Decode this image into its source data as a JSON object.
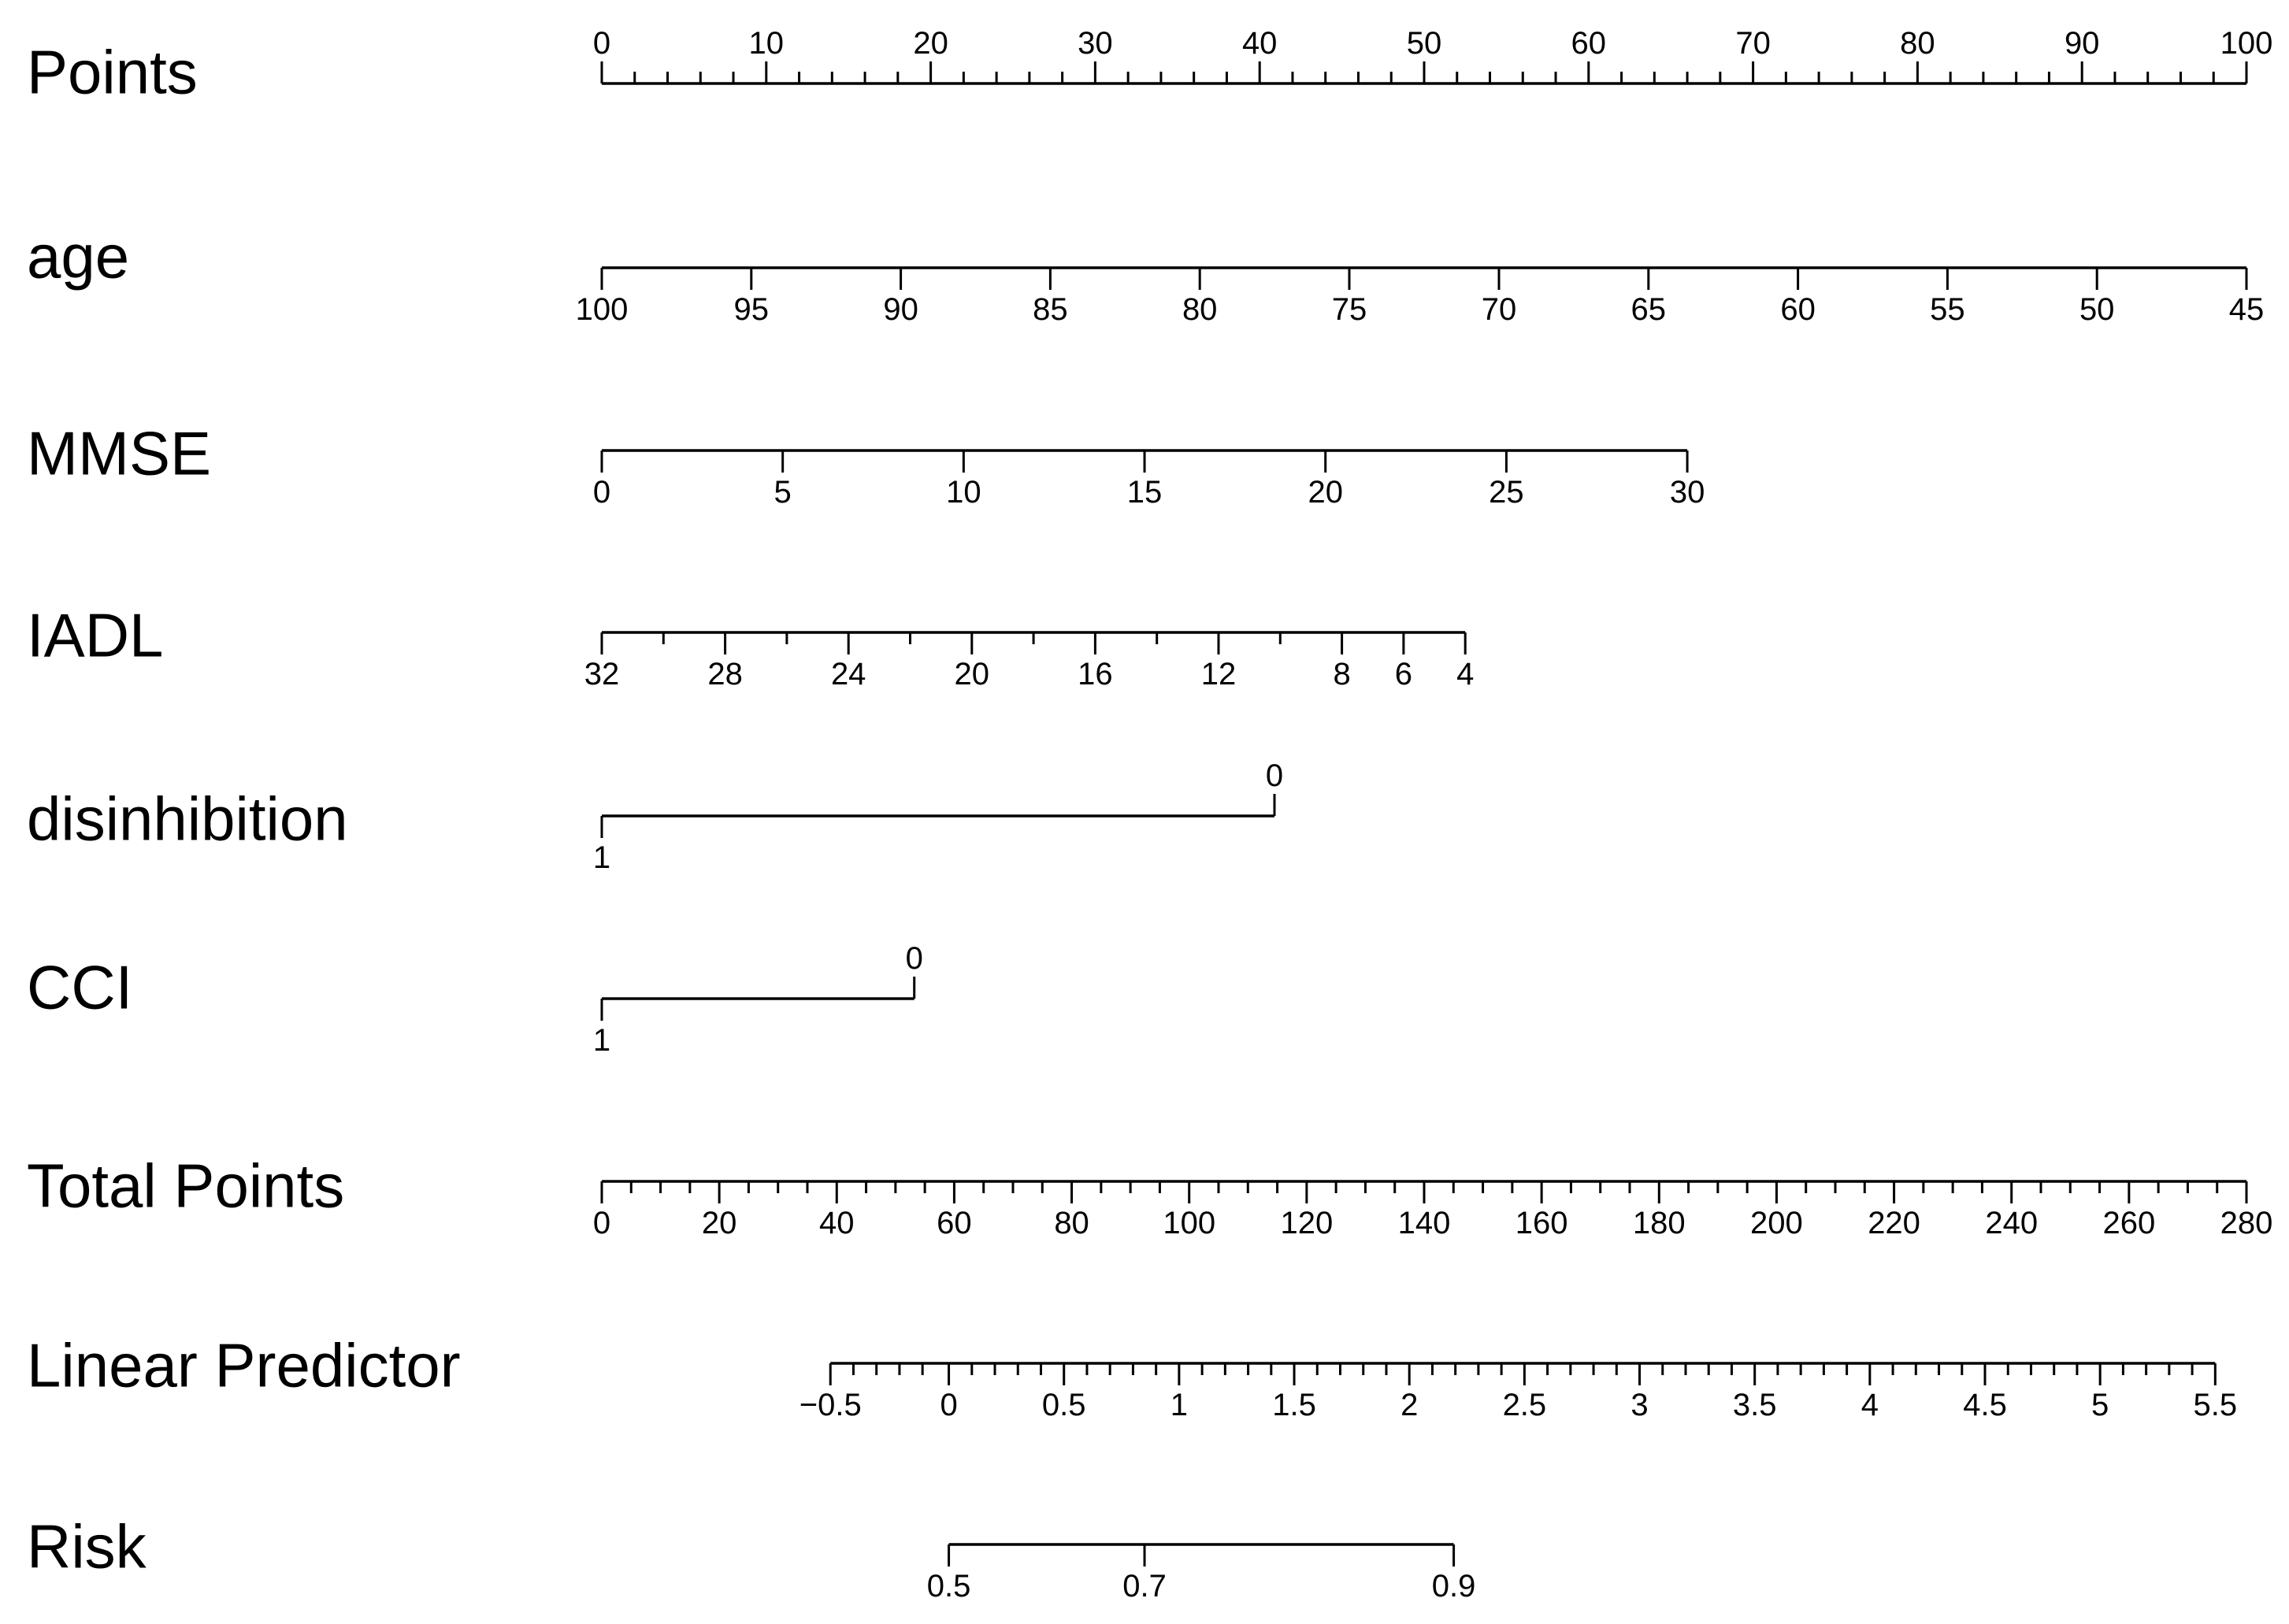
{
  "chart_data": {
    "type": "nomogram",
    "points_scale": [
      0,
      100
    ],
    "rows": [
      {
        "label": "Points",
        "labels_above": true,
        "minor_step": 2,
        "ticks": [
          {
            "value": 0,
            "label": "0"
          },
          {
            "value": 10,
            "label": "10"
          },
          {
            "value": 20,
            "label": "20"
          },
          {
            "value": 30,
            "label": "30"
          },
          {
            "value": 40,
            "label": "40"
          },
          {
            "value": 50,
            "label": "50"
          },
          {
            "value": 60,
            "label": "60"
          },
          {
            "value": 70,
            "label": "70"
          },
          {
            "value": 80,
            "label": "80"
          },
          {
            "value": 90,
            "label": "90"
          },
          {
            "value": 100,
            "label": "100"
          }
        ]
      },
      {
        "label": "age",
        "labels_above": false,
        "ticks": [
          {
            "value": 100,
            "points": 0,
            "label": "100"
          },
          {
            "value": 95,
            "points": 9.09,
            "label": "95"
          },
          {
            "value": 90,
            "points": 18.18,
            "label": "90"
          },
          {
            "value": 85,
            "points": 27.27,
            "label": "85"
          },
          {
            "value": 80,
            "points": 36.36,
            "label": "80"
          },
          {
            "value": 75,
            "points": 45.45,
            "label": "75"
          },
          {
            "value": 70,
            "points": 54.55,
            "label": "70"
          },
          {
            "value": 65,
            "points": 63.64,
            "label": "65"
          },
          {
            "value": 60,
            "points": 72.73,
            "label": "60"
          },
          {
            "value": 55,
            "points": 81.82,
            "label": "55"
          },
          {
            "value": 50,
            "points": 90.91,
            "label": "50"
          },
          {
            "value": 45,
            "points": 100,
            "label": "45"
          }
        ]
      },
      {
        "label": "MMSE",
        "labels_above": false,
        "ticks": [
          {
            "value": 0,
            "points": 0,
            "label": "0"
          },
          {
            "value": 5,
            "points": 11,
            "label": "5"
          },
          {
            "value": 10,
            "points": 22,
            "label": "10"
          },
          {
            "value": 15,
            "points": 33,
            "label": "15"
          },
          {
            "value": 20,
            "points": 44,
            "label": "20"
          },
          {
            "value": 25,
            "points": 55,
            "label": "25"
          },
          {
            "value": 30,
            "points": 66,
            "label": "30"
          }
        ]
      },
      {
        "label": "IADL",
        "labels_above": false,
        "ticks": [
          {
            "value": 32,
            "points": 0,
            "label": "32"
          },
          {
            "value": 30,
            "points": 3.75
          },
          {
            "value": 28,
            "points": 7.5,
            "label": "28"
          },
          {
            "value": 26,
            "points": 11.25
          },
          {
            "value": 24,
            "points": 15,
            "label": "24"
          },
          {
            "value": 22,
            "points": 18.75
          },
          {
            "value": 20,
            "points": 22.5,
            "label": "20"
          },
          {
            "value": 18,
            "points": 26.25
          },
          {
            "value": 16,
            "points": 30,
            "label": "16"
          },
          {
            "value": 14,
            "points": 33.75
          },
          {
            "value": 12,
            "points": 37.5,
            "label": "12"
          },
          {
            "value": 10,
            "points": 41.25
          },
          {
            "value": 8,
            "points": 45,
            "label": "8"
          },
          {
            "value": 6,
            "points": 48.75,
            "label": "6"
          },
          {
            "value": 4,
            "points": 52.5,
            "label": "4"
          }
        ]
      },
      {
        "label": "disinhibition",
        "labels_above": false,
        "ticks": [
          {
            "value": 1,
            "points": 0,
            "label": "1",
            "side": "below"
          },
          {
            "value": 0,
            "points": 40.9,
            "label": "0",
            "side": "above"
          }
        ]
      },
      {
        "label": "CCI",
        "labels_above": false,
        "ticks": [
          {
            "value": 1,
            "points": 0,
            "label": "1",
            "side": "below"
          },
          {
            "value": 0,
            "points": 19,
            "label": "0",
            "side": "above"
          }
        ]
      },
      {
        "label": "Total Points",
        "labels_above": false,
        "total_scale": [
          0,
          280
        ],
        "minor_step": 5,
        "ticks": [
          {
            "value": 0,
            "label": "0"
          },
          {
            "value": 20,
            "label": "20"
          },
          {
            "value": 40,
            "label": "40"
          },
          {
            "value": 60,
            "label": "60"
          },
          {
            "value": 80,
            "label": "80"
          },
          {
            "value": 100,
            "label": "100"
          },
          {
            "value": 120,
            "label": "120"
          },
          {
            "value": 140,
            "label": "140"
          },
          {
            "value": 160,
            "label": "160"
          },
          {
            "value": 180,
            "label": "180"
          },
          {
            "value": 200,
            "label": "200"
          },
          {
            "value": 220,
            "label": "220"
          },
          {
            "value": 240,
            "label": "240"
          },
          {
            "value": 260,
            "label": "260"
          },
          {
            "value": 280,
            "label": "280"
          }
        ]
      },
      {
        "label": "Linear Predictor",
        "labels_above": false,
        "ticks": [
          {
            "value": -0.5,
            "points": 13.9,
            "label": "−0.5"
          },
          {
            "value": 0,
            "points": 21.1,
            "label": "0"
          },
          {
            "value": 0.5,
            "points": 28.1,
            "label": "0.5"
          },
          {
            "value": 1,
            "points": 35.1,
            "label": "1"
          },
          {
            "value": 1.5,
            "points": 42.1,
            "label": "1.5"
          },
          {
            "value": 2,
            "points": 49.1,
            "label": "2"
          },
          {
            "value": 2.5,
            "points": 56.1,
            "label": "2.5"
          },
          {
            "value": 3,
            "points": 63.1,
            "label": "3"
          },
          {
            "value": 3.5,
            "points": 70.1,
            "label": "3.5"
          },
          {
            "value": 4,
            "points": 77.1,
            "label": "4"
          },
          {
            "value": 4.5,
            "points": 84.1,
            "label": "4.5"
          },
          {
            "value": 5,
            "points": 91.1,
            "label": "5"
          },
          {
            "value": 5.5,
            "points": 98.1,
            "label": "5.5"
          }
        ],
        "minor_ticks_points": [
          15.3,
          16.7,
          18.1,
          19.5,
          22.5,
          23.9,
          25.3,
          26.7,
          29.5,
          30.9,
          32.3,
          33.7,
          36.5,
          37.9,
          39.3,
          40.7,
          43.5,
          44.9,
          46.3,
          47.7,
          50.5,
          51.9,
          53.3,
          54.7,
          57.5,
          58.9,
          60.3,
          61.7,
          64.5,
          65.9,
          67.3,
          68.7,
          71.5,
          72.9,
          74.3,
          75.7,
          78.5,
          79.9,
          81.3,
          82.7,
          85.5,
          86.9,
          88.3,
          89.7,
          92.5,
          93.9,
          95.3,
          96.7
        ]
      },
      {
        "label": "Risk",
        "labels_above": false,
        "ticks": [
          {
            "value": 0.5,
            "points": 21.1,
            "label": "0.5"
          },
          {
            "value": 0.7,
            "points": 33,
            "label": "0.7"
          },
          {
            "value": 0.9,
            "points": 51.8,
            "label": "0.9"
          }
        ]
      }
    ]
  }
}
